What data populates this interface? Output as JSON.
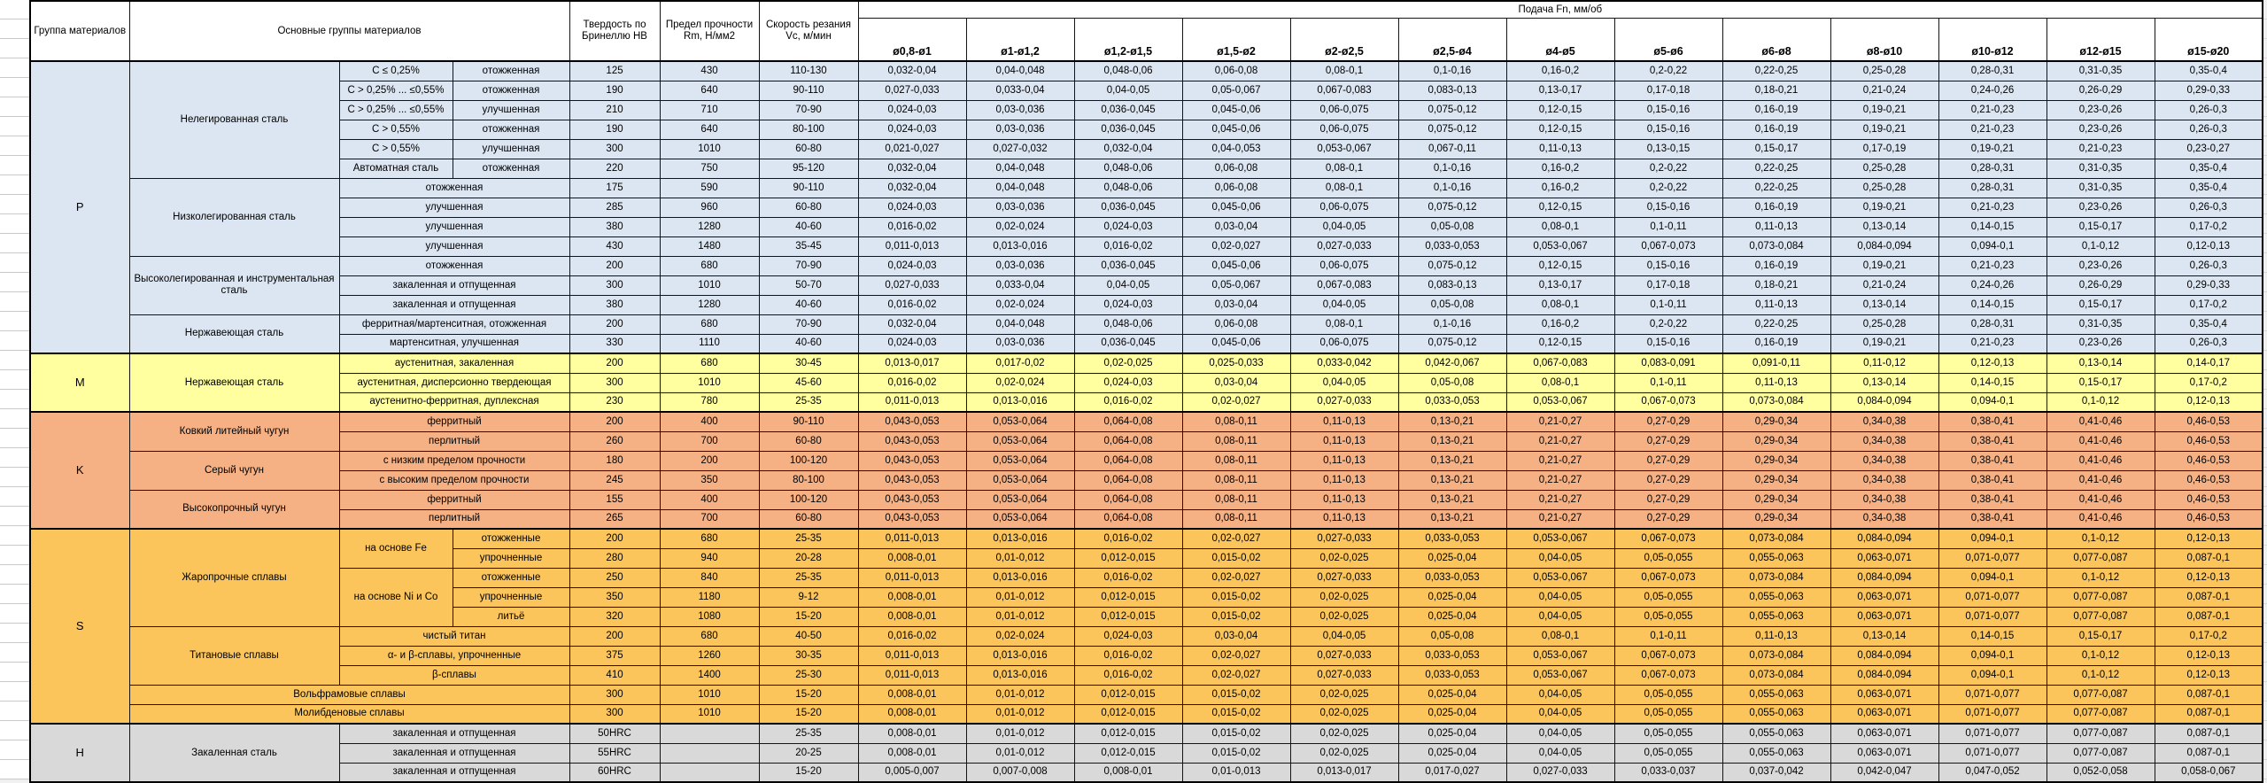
{
  "header": {
    "col_group": "Группа материалов",
    "col_main": "Основные группы материалов",
    "col_hb": "Твердость по Бринеллю HB",
    "col_rm": "Предел прочности Rm, Н/мм2",
    "col_vc": "Скорость резания Vc, м/мин",
    "feed_title": "Подача Fn, мм/об",
    "feed_cols": [
      "ø0,8-ø1",
      "ø1-ø1,2",
      "ø1,2-ø1,5",
      "ø1,5-ø2",
      "ø2-ø2,5",
      "ø2,5-ø4",
      "ø4-ø5",
      "ø5-ø6",
      "ø6-ø8",
      "ø8-ø10",
      "ø10-ø12",
      "ø12-ø15",
      "ø15-ø20"
    ]
  },
  "colors": {
    "group_P": "#dce6f2",
    "group_M": "#ffff9f",
    "group_K": "#f5b083",
    "group_S": "#fbc55c",
    "group_H": "#d9d9d9",
    "border": "#141414",
    "header_bg": "#ffffff"
  },
  "feed_patterns": {
    "A": [
      "0,032-0,04",
      "0,04-0,048",
      "0,048-0,06",
      "0,06-0,08",
      "0,08-0,1",
      "0,1-0,16",
      "0,16-0,2",
      "0,2-0,22",
      "0,22-0,25",
      "0,25-0,28",
      "0,28-0,31",
      "0,31-0,35",
      "0,35-0,4"
    ],
    "B": [
      "0,027-0,033",
      "0,033-0,04",
      "0,04-0,05",
      "0,05-0,067",
      "0,067-0,083",
      "0,083-0,13",
      "0,13-0,17",
      "0,17-0,18",
      "0,18-0,21",
      "0,21-0,24",
      "0,24-0,26",
      "0,26-0,29",
      "0,29-0,33"
    ],
    "C": [
      "0,024-0,03",
      "0,03-0,036",
      "0,036-0,045",
      "0,045-0,06",
      "0,06-0,075",
      "0,075-0,12",
      "0,12-0,15",
      "0,15-0,16",
      "0,16-0,19",
      "0,19-0,21",
      "0,21-0,23",
      "0,23-0,26",
      "0,26-0,3"
    ],
    "D": [
      "0,021-0,027",
      "0,027-0,032",
      "0,032-0,04",
      "0,04-0,053",
      "0,053-0,067",
      "0,067-0,11",
      "0,11-0,13",
      "0,13-0,15",
      "0,15-0,17",
      "0,17-0,19",
      "0,19-0,21",
      "0,21-0,23",
      "0,23-0,27"
    ],
    "E": [
      "0,016-0,02",
      "0,02-0,024",
      "0,024-0,03",
      "0,03-0,04",
      "0,04-0,05",
      "0,05-0,08",
      "0,08-0,1",
      "0,1-0,11",
      "0,11-0,13",
      "0,13-0,14",
      "0,14-0,15",
      "0,15-0,17",
      "0,17-0,2"
    ],
    "F": [
      "0,011-0,013",
      "0,013-0,016",
      "0,016-0,02",
      "0,02-0,027",
      "0,027-0,033",
      "0,033-0,053",
      "0,053-0,067",
      "0,067-0,073",
      "0,073-0,084",
      "0,084-0,094",
      "0,094-0,1",
      "0,1-0,12",
      "0,12-0,13"
    ],
    "G": [
      "0,013-0,017",
      "0,017-0,02",
      "0,02-0,025",
      "0,025-0,033",
      "0,033-0,042",
      "0,042-0,067",
      "0,067-0,083",
      "0,083-0,091",
      "0,091-0,11",
      "0,11-0,12",
      "0,12-0,13",
      "0,13-0,14",
      "0,14-0,17"
    ],
    "K1": [
      "0,043-0,053",
      "0,053-0,064",
      "0,064-0,08",
      "0,08-0,11",
      "0,11-0,13",
      "0,13-0,21",
      "0,21-0,27",
      "0,27-0,29",
      "0,29-0,34",
      "0,34-0,38",
      "0,38-0,41",
      "0,41-0,46",
      "0,46-0,53"
    ],
    "H8": [
      "0,008-0,01",
      "0,01-0,012",
      "0,012-0,015",
      "0,015-0,02",
      "0,02-0,025",
      "0,025-0,04",
      "0,04-0,05",
      "0,05-0,055",
      "0,055-0,063",
      "0,063-0,071",
      "0,071-0,077",
      "0,077-0,087",
      "0,087-0,1"
    ],
    "I1": [
      "0,005-0,007",
      "0,007-0,008",
      "0,008-0,01",
      "0,01-0,013",
      "0,013-0,017",
      "0,017-0,027",
      "0,027-0,033",
      "0,033-0,037",
      "0,037-0,042",
      "0,042-0,047",
      "0,047-0,052",
      "0,052-0,058",
      "0,058-0,067"
    ]
  },
  "groups": [
    {
      "id": "P",
      "color_key": "group_P",
      "rows": [
        {
          "labels": [
            {
              "t": "Нелегированная сталь",
              "rs": 6
            },
            {
              "t": "C ≤ 0,25%"
            },
            {
              "t": "отожженная"
            }
          ],
          "hb": "125",
          "rm": "430",
          "vc": "110-130",
          "fp": "A"
        },
        {
          "labels": [
            {
              "t": "C > 0,25% ... ≤0,55%"
            },
            {
              "t": "отожженная"
            }
          ],
          "hb": "190",
          "rm": "640",
          "vc": "90-110",
          "fp": "B"
        },
        {
          "labels": [
            {
              "t": "C > 0,25% ... ≤0,55%"
            },
            {
              "t": "улучшенная"
            }
          ],
          "hb": "210",
          "rm": "710",
          "vc": "70-90",
          "fp": "C"
        },
        {
          "labels": [
            {
              "t": "C > 0,55%"
            },
            {
              "t": "отожженная"
            }
          ],
          "hb": "190",
          "rm": "640",
          "vc": "80-100",
          "fp": "C"
        },
        {
          "labels": [
            {
              "t": "C > 0,55%"
            },
            {
              "t": "улучшенная"
            }
          ],
          "hb": "300",
          "rm": "1010",
          "vc": "60-80",
          "fp": "D"
        },
        {
          "labels": [
            {
              "t": "Автоматная сталь"
            },
            {
              "t": "отожженная"
            }
          ],
          "hb": "220",
          "rm": "750",
          "vc": "95-120",
          "fp": "A"
        },
        {
          "labels": [
            {
              "t": "Низколегированная сталь",
              "rs": 4
            },
            {
              "t": "отожженная",
              "cs": 2
            }
          ],
          "hb": "175",
          "rm": "590",
          "vc": "90-110",
          "fp": "A"
        },
        {
          "labels": [
            {
              "t": "улучшенная",
              "cs": 2
            }
          ],
          "hb": "285",
          "rm": "960",
          "vc": "60-80",
          "fp": "C"
        },
        {
          "labels": [
            {
              "t": "улучшенная",
              "cs": 2
            }
          ],
          "hb": "380",
          "rm": "1280",
          "vc": "40-60",
          "fp": "E"
        },
        {
          "labels": [
            {
              "t": "улучшенная",
              "cs": 2
            }
          ],
          "hb": "430",
          "rm": "1480",
          "vc": "35-45",
          "fp": "F"
        },
        {
          "labels": [
            {
              "t": "Высоколегированная и инструментальная сталь",
              "rs": 3
            },
            {
              "t": "отожженная",
              "cs": 2
            }
          ],
          "hb": "200",
          "rm": "680",
          "vc": "70-90",
          "fp": "C"
        },
        {
          "labels": [
            {
              "t": "закаленная и отпущенная",
              "cs": 2
            }
          ],
          "hb": "300",
          "rm": "1010",
          "vc": "50-70",
          "fp": "B"
        },
        {
          "labels": [
            {
              "t": "закаленная и отпущенная",
              "cs": 2
            }
          ],
          "hb": "380",
          "rm": "1280",
          "vc": "40-60",
          "fp": "E"
        },
        {
          "labels": [
            {
              "t": "Нержавеющая сталь",
              "rs": 2
            },
            {
              "t": "ферритная/мартенситная, отожженная",
              "cs": 2
            }
          ],
          "hb": "200",
          "rm": "680",
          "vc": "70-90",
          "fp": "A"
        },
        {
          "labels": [
            {
              "t": "мартенситная, улучшенная",
              "cs": 2
            }
          ],
          "hb": "330",
          "rm": "1110",
          "vc": "40-60",
          "fp": "C"
        }
      ]
    },
    {
      "id": "M",
      "color_key": "group_M",
      "rows": [
        {
          "labels": [
            {
              "t": "Нержавеющая сталь",
              "rs": 3
            },
            {
              "t": "аустенитная, закаленная",
              "cs": 2
            }
          ],
          "hb": "200",
          "rm": "680",
          "vc": "30-45",
          "fp": "G"
        },
        {
          "labels": [
            {
              "t": "аустенитная, дисперсионно твердеющая",
              "cs": 2
            }
          ],
          "hb": "300",
          "rm": "1010",
          "vc": "45-60",
          "fp": "E"
        },
        {
          "labels": [
            {
              "t": "аустенитно-ферритная, дуплексная",
              "cs": 2
            }
          ],
          "hb": "230",
          "rm": "780",
          "vc": "25-35",
          "fp": "F"
        }
      ]
    },
    {
      "id": "K",
      "color_key": "group_K",
      "rows": [
        {
          "labels": [
            {
              "t": "Ковкий литейный чугун",
              "rs": 2
            },
            {
              "t": "ферритный",
              "cs": 2
            }
          ],
          "hb": "200",
          "rm": "400",
          "vc": "90-110",
          "fp": "K1"
        },
        {
          "labels": [
            {
              "t": "перлитный",
              "cs": 2
            }
          ],
          "hb": "260",
          "rm": "700",
          "vc": "60-80",
          "fp": "K1"
        },
        {
          "labels": [
            {
              "t": "Серый чугун",
              "rs": 2
            },
            {
              "t": "с низким пределом прочности",
              "cs": 2
            }
          ],
          "hb": "180",
          "rm": "200",
          "vc": "100-120",
          "fp": "K1"
        },
        {
          "labels": [
            {
              "t": "с высоким пределом прочности",
              "cs": 2
            }
          ],
          "hb": "245",
          "rm": "350",
          "vc": "80-100",
          "fp": "K1"
        },
        {
          "labels": [
            {
              "t": "Высокопрочный чугун",
              "rs": 2
            },
            {
              "t": "ферритный",
              "cs": 2
            }
          ],
          "hb": "155",
          "rm": "400",
          "vc": "100-120",
          "fp": "K1"
        },
        {
          "labels": [
            {
              "t": "перлитный",
              "cs": 2
            }
          ],
          "hb": "265",
          "rm": "700",
          "vc": "60-80",
          "fp": "K1"
        }
      ]
    },
    {
      "id": "S",
      "color_key": "group_S",
      "rows": [
        {
          "labels": [
            {
              "t": "Жаропрочные сплавы",
              "rs": 5
            },
            {
              "t": "на основе Fe",
              "rs": 2
            },
            {
              "t": "отожженные"
            }
          ],
          "hb": "200",
          "rm": "680",
          "vc": "25-35",
          "fp": "F"
        },
        {
          "labels": [
            {
              "t": "упрочненные"
            }
          ],
          "hb": "280",
          "rm": "940",
          "vc": "20-28",
          "fp": "H8"
        },
        {
          "labels": [
            {
              "t": "на основе Ni и Co",
              "rs": 3
            },
            {
              "t": "отожженные"
            }
          ],
          "hb": "250",
          "rm": "840",
          "vc": "25-35",
          "fp": "F"
        },
        {
          "labels": [
            {
              "t": "упрочненные"
            }
          ],
          "hb": "350",
          "rm": "1180",
          "vc": "9-12",
          "fp": "H8"
        },
        {
          "labels": [
            {
              "t": "литьё"
            }
          ],
          "hb": "320",
          "rm": "1080",
          "vc": "15-20",
          "fp": "H8"
        },
        {
          "labels": [
            {
              "t": "Титановые сплавы",
              "rs": 3
            },
            {
              "t": "чистый титан",
              "cs": 2
            }
          ],
          "hb": "200",
          "rm": "680",
          "vc": "40-50",
          "fp": "E"
        },
        {
          "labels": [
            {
              "t": "α- и β-сплавы, упрочненные",
              "cs": 2
            }
          ],
          "hb": "375",
          "rm": "1260",
          "vc": "30-35",
          "fp": "F"
        },
        {
          "labels": [
            {
              "t": "β-сплавы",
              "cs": 2
            }
          ],
          "hb": "410",
          "rm": "1400",
          "vc": "25-30",
          "fp": "F"
        },
        {
          "labels": [
            {
              "t": "Вольфрамовые сплавы",
              "cs": 3
            }
          ],
          "hb": "300",
          "rm": "1010",
          "vc": "15-20",
          "fp": "H8"
        },
        {
          "labels": [
            {
              "t": "Молибденовые сплавы",
              "cs": 3
            }
          ],
          "hb": "300",
          "rm": "1010",
          "vc": "15-20",
          "fp": "H8"
        }
      ]
    },
    {
      "id": "H",
      "color_key": "group_H",
      "rows": [
        {
          "labels": [
            {
              "t": "Закаленная сталь",
              "rs": 3
            },
            {
              "t": "закаленная и отпущенная",
              "cs": 2
            }
          ],
          "hb": "50HRC",
          "rm": "",
          "vc": "25-35",
          "fp": "H8"
        },
        {
          "labels": [
            {
              "t": "закаленная и отпущенная",
              "cs": 2
            }
          ],
          "hb": "55HRC",
          "rm": "",
          "vc": "20-25",
          "fp": "H8"
        },
        {
          "labels": [
            {
              "t": "закаленная и отпущенная",
              "cs": 2
            }
          ],
          "hb": "60HRC",
          "rm": "",
          "vc": "15-20",
          "fp": "I1"
        }
      ]
    }
  ]
}
